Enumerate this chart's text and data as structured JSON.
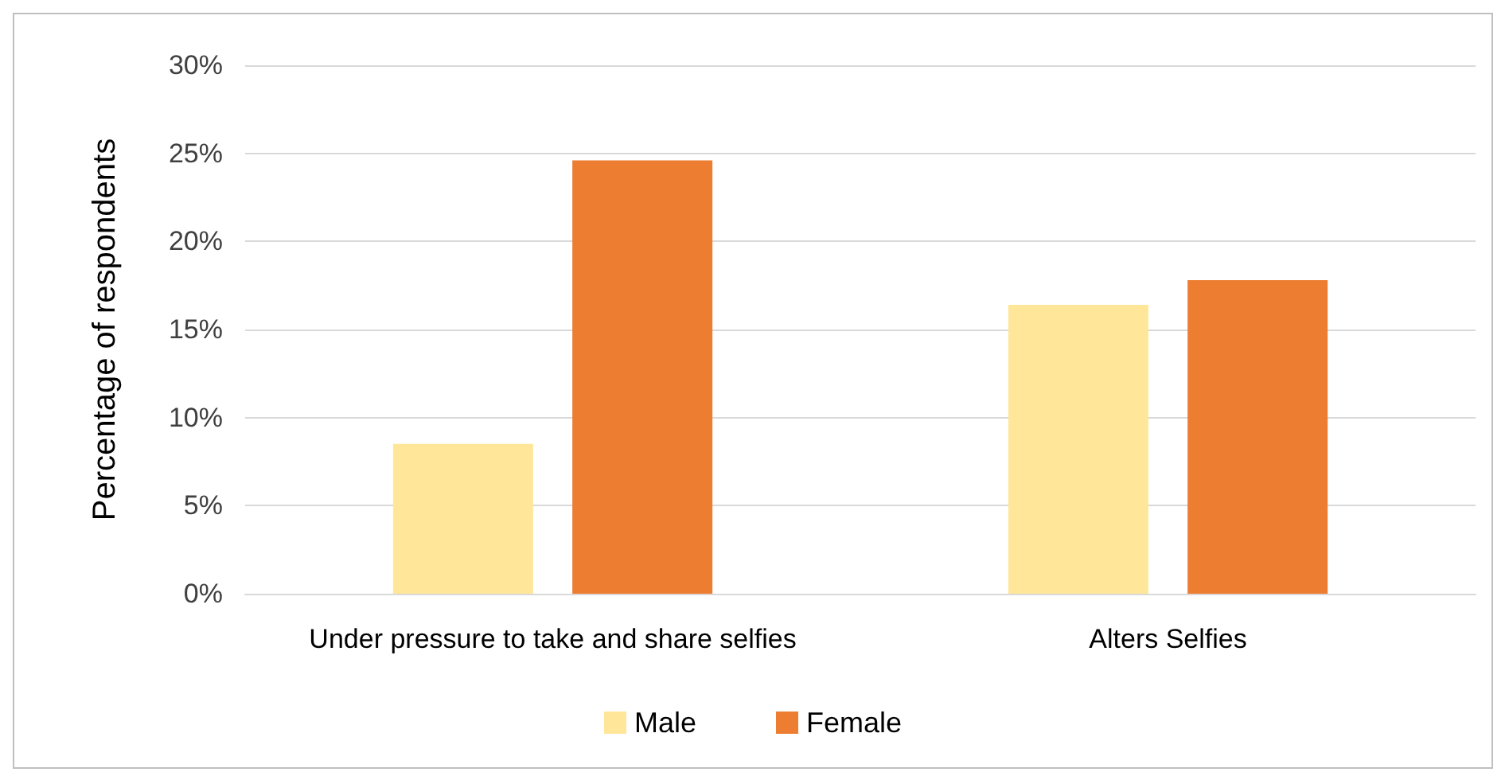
{
  "chart_data": {
    "type": "bar",
    "ylabel": "Percentage of respondents",
    "categories": [
      "Under pressure to take and share selfies",
      "Alters Selfies"
    ],
    "series": [
      {
        "name": "Male",
        "color": "#ffe699",
        "values": [
          8.5,
          16.4
        ]
      },
      {
        "name": "Female",
        "color": "#ed7d31",
        "values": [
          24.6,
          17.8
        ]
      }
    ],
    "ylim": [
      0,
      30
    ],
    "yticks": [
      {
        "value": 0,
        "label": "0%"
      },
      {
        "value": 5,
        "label": "5%"
      },
      {
        "value": 10,
        "label": "10%"
      },
      {
        "value": 15,
        "label": "15%"
      },
      {
        "value": 20,
        "label": "20%"
      },
      {
        "value": 25,
        "label": "25%"
      },
      {
        "value": 30,
        "label": "30%"
      }
    ],
    "grid": "y",
    "legend": "bottom"
  }
}
